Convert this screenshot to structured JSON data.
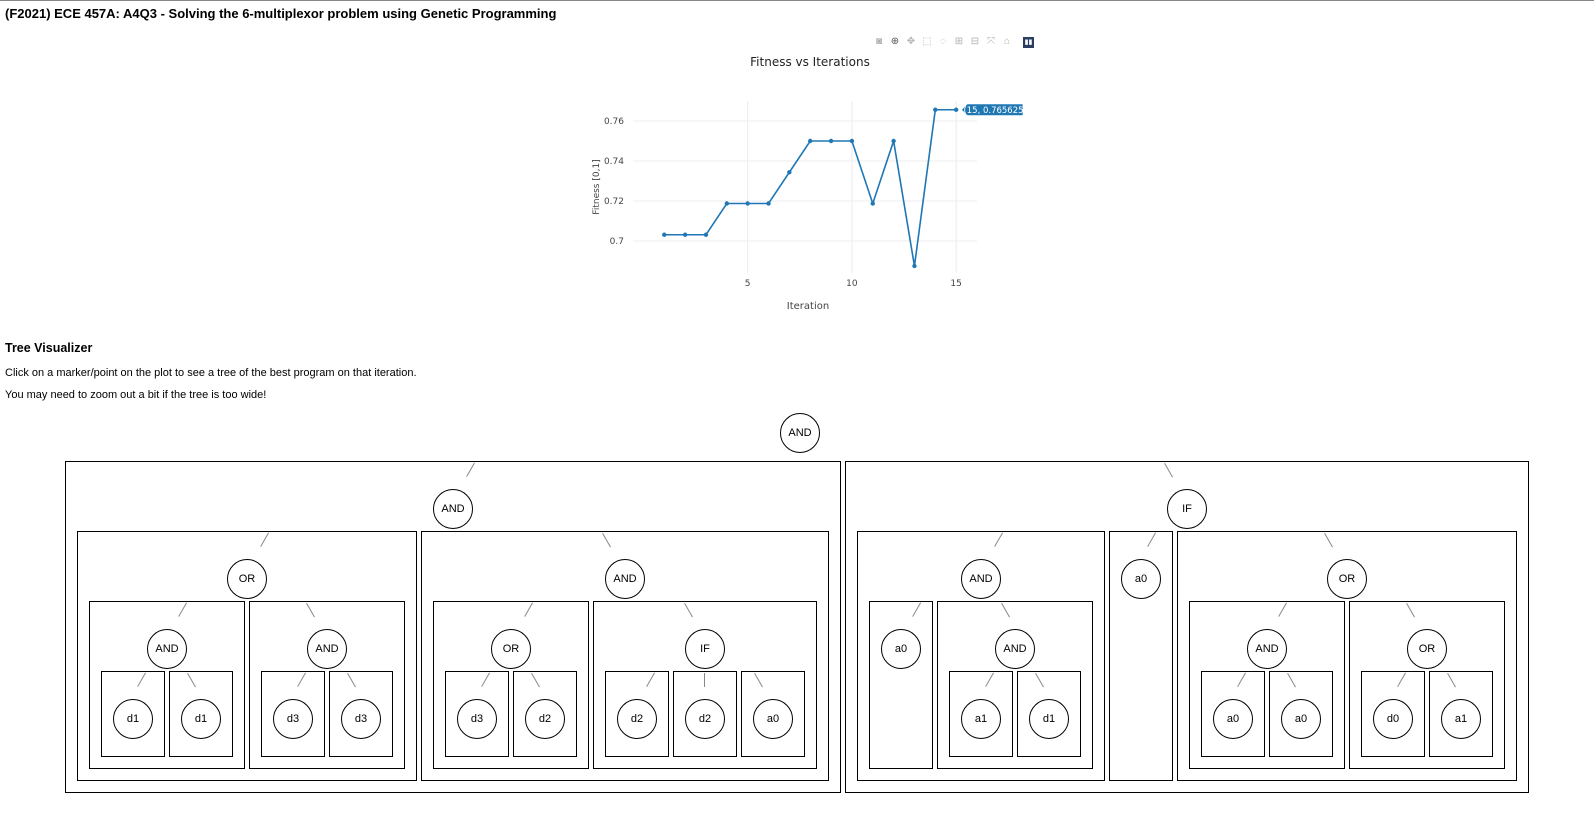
{
  "header": {
    "title": "(F2021) ECE 457A: A4Q3 - Solving the 6-multiplexor problem using Genetic Programming"
  },
  "modebar": {
    "icons": [
      "camera-icon",
      "zoom-icon",
      "pan-icon",
      "box-select-icon",
      "lasso-icon",
      "zoom-in-icon",
      "zoom-out-icon",
      "autoscale-icon",
      "reset-axes-icon",
      "plotly-logo-icon"
    ]
  },
  "chart_data": {
    "type": "line",
    "title": "Fitness vs Iterations",
    "xlabel": "Iteration",
    "ylabel": "Fitness [0,1]",
    "x": [
      1,
      2,
      3,
      4,
      5,
      6,
      7,
      8,
      9,
      10,
      11,
      12,
      13,
      14,
      15
    ],
    "y": [
      0.703125,
      0.703125,
      0.703125,
      0.71875,
      0.71875,
      0.71875,
      0.734375,
      0.75,
      0.75,
      0.75,
      0.71875,
      0.75,
      0.6875,
      0.765625,
      0.765625
    ],
    "xlim": [
      -0.5,
      16
    ],
    "ylim": [
      0.684,
      0.77
    ],
    "xticks": [
      5,
      10,
      15
    ],
    "yticks": [
      0.7,
      0.72,
      0.74,
      0.76
    ],
    "ytick_labels": [
      "0.7",
      "0.72",
      "0.74",
      "0.76"
    ],
    "grid": true,
    "color": "#1f77b4",
    "hover_label": "(15, 0.765625)"
  },
  "visualizer": {
    "title": "Tree Visualizer",
    "instructions": [
      "Click on a marker/point on the plot to see a tree of the best program on that iteration.",
      "You may need to zoom out a bit if the tree is too wide!"
    ]
  },
  "tree": {
    "label": "AND",
    "children": [
      {
        "label": "AND",
        "children": [
          {
            "label": "OR",
            "children": [
              {
                "label": "AND",
                "children": [
                  {
                    "label": "d1"
                  },
                  {
                    "label": "d1"
                  }
                ]
              },
              {
                "label": "AND",
                "children": [
                  {
                    "label": "d3"
                  },
                  {
                    "label": "d3"
                  }
                ]
              }
            ]
          },
          {
            "label": "AND",
            "children": [
              {
                "label": "OR",
                "children": [
                  {
                    "label": "d3"
                  },
                  {
                    "label": "d2"
                  }
                ]
              },
              {
                "label": "IF",
                "children": [
                  {
                    "label": "d2"
                  },
                  {
                    "label": "d2"
                  },
                  {
                    "label": "a0"
                  }
                ]
              }
            ]
          }
        ]
      },
      {
        "label": "IF",
        "children": [
          {
            "label": "AND",
            "children": [
              {
                "label": "a0"
              },
              {
                "label": "AND",
                "children": [
                  {
                    "label": "a1"
                  },
                  {
                    "label": "d1"
                  }
                ]
              }
            ]
          },
          {
            "label": "a0"
          },
          {
            "label": "OR",
            "children": [
              {
                "label": "AND",
                "children": [
                  {
                    "label": "a0"
                  },
                  {
                    "label": "a0"
                  }
                ]
              },
              {
                "label": "OR",
                "children": [
                  {
                    "label": "d0"
                  },
                  {
                    "label": "a1"
                  }
                ]
              }
            ]
          }
        ]
      }
    ]
  }
}
